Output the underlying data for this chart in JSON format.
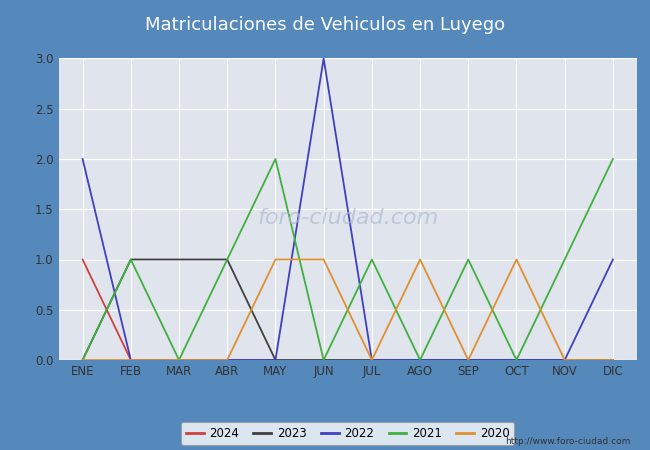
{
  "title": "Matriculaciones de Vehiculos en Luyego",
  "months": [
    "ENE",
    "FEB",
    "MAR",
    "ABR",
    "MAY",
    "JUN",
    "JUL",
    "AGO",
    "SEP",
    "OCT",
    "NOV",
    "DIC"
  ],
  "series": {
    "2024": {
      "color": "#d04040",
      "values": [
        1,
        0,
        0,
        0,
        0,
        null,
        null,
        null,
        null,
        null,
        null,
        null
      ]
    },
    "2023": {
      "color": "#404040",
      "values": [
        0,
        1,
        1,
        1,
        0,
        0,
        0,
        0,
        0,
        0,
        0,
        0
      ]
    },
    "2022": {
      "color": "#4040c0",
      "values": [
        2,
        0,
        0,
        0,
        0,
        3,
        0,
        0,
        0,
        0,
        0,
        1
      ]
    },
    "2021": {
      "color": "#40b040",
      "values": [
        0,
        1,
        0,
        1,
        2,
        0,
        1,
        0,
        1,
        0,
        1,
        2
      ]
    },
    "2020": {
      "color": "#e09030",
      "values": [
        0,
        0,
        0,
        0,
        1,
        1,
        0,
        1,
        0,
        1,
        0,
        0
      ]
    }
  },
  "ylim": [
    0,
    3.0
  ],
  "yticks": [
    0.0,
    0.5,
    1.0,
    1.5,
    2.0,
    2.5,
    3.0
  ],
  "fig_bg_color": "#5588bb",
  "plot_bg_color": "#e0e4ec",
  "title_text_color": "#ffffff",
  "title_bg_color": "#5588bb",
  "watermark_url": "http://www.foro-ciudad.com",
  "watermark_center": "foro-ciudad.com",
  "legend_years": [
    "2024",
    "2023",
    "2022",
    "2021",
    "2020"
  ]
}
